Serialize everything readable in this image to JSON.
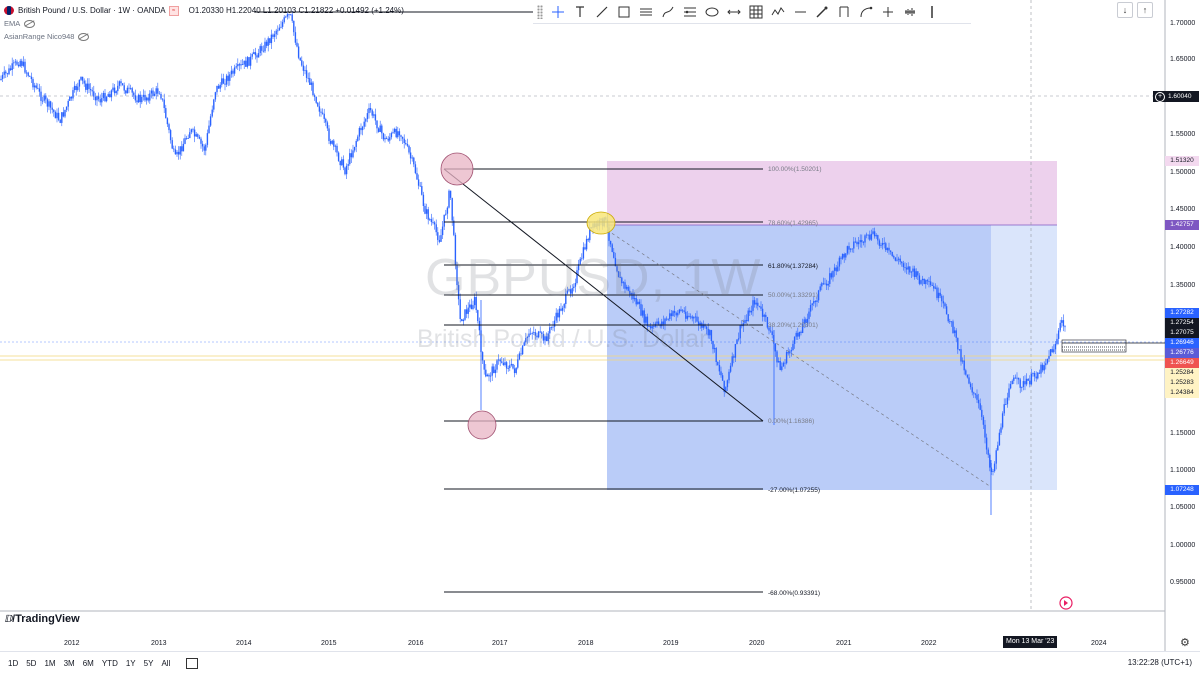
{
  "legend": {
    "symbol_title": "British Pound / U.S. Dollar · 1W · OANDA",
    "ohlc": "O1.20330 H1.22040 L1.20103 C1.21822 +0.01492 (+1.24%)",
    "indicator_1": "EMA",
    "indicator_2": "AsianRange Nico948"
  },
  "watermark": {
    "symbol": "GBPUSD, 1W",
    "name": "British Pound / U.S. Dollar"
  },
  "toolbar": {
    "tools": [
      "crosshair-icon",
      "text-icon",
      "trend-line-icon",
      "rectangle-icon",
      "parallel-channel-icon",
      "path-icon",
      "fib-retracement-icon",
      "ellipse-icon",
      "date-range-icon",
      "grid-icon",
      "zigzag-icon",
      "horizontal-ray-icon",
      "brush-icon",
      "projection-icon",
      "fork-icon",
      "cross-icon",
      "volume-profile-icon",
      "bar-icon"
    ]
  },
  "top_right_buttons": [
    "↓",
    "↑"
  ],
  "price_axis": {
    "ticks": [
      "1.70000",
      "1.65000",
      "1.55000",
      "1.50000",
      "1.45000",
      "1.40000",
      "1.35000",
      "1.15000",
      "1.10000",
      "1.05000",
      "1.00000",
      "0.95000"
    ],
    "crosshair_price": "1.60040",
    "tags": [
      {
        "label": "1.51320",
        "color": "#f3d9ef",
        "text": "dark"
      },
      {
        "label": "1.42757",
        "color": "#7e57c2",
        "text": "light"
      },
      {
        "label": "1.27282",
        "color": "#2962ff",
        "text": "light"
      },
      {
        "label": "1.27254",
        "color": "#131722",
        "text": "light"
      },
      {
        "label": "1.27075",
        "color": "#131722",
        "text": "light"
      },
      {
        "label": "1.26946",
        "color": "#2962ff",
        "text": "light"
      },
      {
        "label": "1.26776",
        "color": "#5b5bd6",
        "text": "light"
      },
      {
        "label": "1.26649",
        "color": "#ef5350",
        "text": "light"
      },
      {
        "label": "1.25284",
        "color": "#fff3c4",
        "text": "dark"
      },
      {
        "label": "1.25283",
        "color": "#fff3c4",
        "text": "dark"
      },
      {
        "label": "1.24384",
        "color": "#fff3c4",
        "text": "dark"
      },
      {
        "label": "1.07248",
        "color": "#2962ff",
        "text": "light"
      }
    ]
  },
  "fib_levels": [
    {
      "label": "100.00%(1.50201)",
      "dim": true
    },
    {
      "label": "78.60%(1.42965)",
      "dim": true
    },
    {
      "label": "61.80%(1.37284)",
      "dim": false
    },
    {
      "label": "50.00%(1.33291)",
      "dim": true
    },
    {
      "label": "38.20%(1.29301)",
      "dim": true
    },
    {
      "label": "0.00%(1.16386)",
      "dim": true
    },
    {
      "label": "-27.00%(1.07255)",
      "dim": false
    },
    {
      "label": "-68.00%(0.93391)",
      "dim": false
    }
  ],
  "time_axis": {
    "labels": [
      "2012",
      "2013",
      "2014",
      "2015",
      "2016",
      "2017",
      "2018",
      "2019",
      "2020",
      "2021",
      "2022",
      "2024"
    ],
    "cursor_date": "Mon 13 Mar '23"
  },
  "brand": "TradingView",
  "bottom_bar": {
    "timeframes": [
      "1D",
      "5D",
      "1M",
      "3M",
      "6M",
      "YTD",
      "1Y",
      "5Y",
      "All"
    ],
    "clock": "13:22:28 (UTC+1)"
  },
  "colors": {
    "candle": "#2962ff",
    "premium_zone": "#e8c6e8",
    "discount_zone": "#aec3f7",
    "circle": "#e8b4c4",
    "yellow": "#f8e67a"
  }
}
